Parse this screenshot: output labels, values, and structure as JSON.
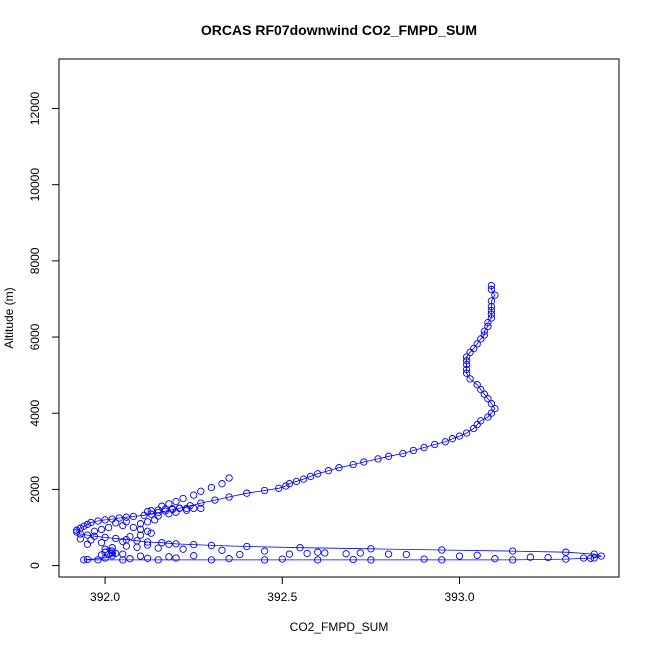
{
  "chart_data": {
    "type": "scatter",
    "title": "ORCAS RF07downwind CO2_FMPD_SUM",
    "xlabel": "CO2_FMPD_SUM",
    "ylabel": "Altitude (m)",
    "xlim": [
      391.87,
      393.45
    ],
    "ylim": [
      -300,
      13300
    ],
    "xticks": [
      392.0,
      392.5,
      393.0
    ],
    "xtick_labels": [
      "392.0",
      "392.5",
      "393.0"
    ],
    "yticks": [
      0,
      2000,
      4000,
      6000,
      8000,
      10000,
      12000
    ],
    "ytick_labels": [
      "0",
      "2000",
      "4000",
      "6000",
      "8000",
      "10000",
      "12000"
    ],
    "grid": false,
    "legend": "none",
    "colors": {
      "series": "#0000ff",
      "axis": "#000000"
    },
    "series": [
      {
        "marker": "open-circle",
        "line": "thin",
        "points": [
          [
            393.09,
            7350
          ],
          [
            393.09,
            7250
          ],
          [
            393.1,
            7100
          ],
          [
            393.09,
            6950
          ],
          [
            393.09,
            6800
          ],
          [
            393.09,
            6700
          ],
          [
            393.09,
            6600
          ],
          [
            393.09,
            6500
          ],
          [
            393.08,
            6380
          ],
          [
            393.08,
            6280
          ],
          [
            393.07,
            6150
          ],
          [
            393.07,
            6050
          ],
          [
            393.06,
            5950
          ],
          [
            393.05,
            5820
          ],
          [
            393.04,
            5700
          ],
          [
            393.03,
            5600
          ],
          [
            393.02,
            5480
          ],
          [
            393.02,
            5380
          ],
          [
            393.02,
            5280
          ],
          [
            393.02,
            5150
          ],
          [
            393.02,
            5050
          ],
          [
            393.03,
            4900
          ],
          [
            393.05,
            4750
          ],
          [
            393.06,
            4620
          ],
          [
            393.07,
            4500
          ],
          [
            393.08,
            4380
          ],
          [
            393.09,
            4250
          ],
          [
            393.1,
            4120
          ],
          [
            393.09,
            4000
          ],
          [
            393.08,
            3900
          ],
          [
            393.06,
            3800
          ],
          [
            393.05,
            3700
          ],
          [
            393.04,
            3600
          ],
          [
            393.02,
            3480
          ],
          [
            393.0,
            3400
          ],
          [
            392.98,
            3330
          ],
          [
            392.96,
            3250
          ],
          [
            392.93,
            3180
          ],
          [
            392.9,
            3100
          ],
          [
            392.87,
            3020
          ],
          [
            392.84,
            2940
          ],
          [
            392.8,
            2870
          ],
          [
            392.77,
            2800
          ],
          [
            392.73,
            2720
          ],
          [
            392.7,
            2650
          ],
          [
            392.66,
            2570
          ],
          [
            392.63,
            2490
          ],
          [
            392.6,
            2410
          ],
          [
            392.58,
            2340
          ],
          [
            392.56,
            2270
          ],
          [
            392.54,
            2210
          ],
          [
            392.52,
            2150
          ],
          [
            392.51,
            2090
          ],
          [
            392.49,
            2030
          ],
          [
            392.45,
            1970
          ],
          [
            392.4,
            1900
          ],
          [
            392.35,
            1800
          ],
          [
            392.31,
            1720
          ],
          [
            392.27,
            1640
          ],
          [
            392.24,
            1570
          ],
          [
            392.21,
            1510
          ],
          [
            392.19,
            1470
          ],
          [
            392.17,
            1430
          ],
          [
            392.15,
            1390
          ],
          [
            392.13,
            1350
          ],
          [
            392.11,
            1320
          ],
          [
            392.08,
            1290
          ],
          [
            392.06,
            1270
          ],
          [
            392.04,
            1250
          ],
          [
            392.02,
            1220
          ],
          [
            392.0,
            1200
          ],
          [
            391.98,
            1170
          ],
          [
            391.96,
            1130
          ],
          [
            391.95,
            1080
          ],
          [
            391.94,
            1030
          ],
          [
            391.93,
            980
          ],
          [
            391.92,
            930
          ],
          [
            391.92,
            880
          ],
          [
            391.93,
            830
          ],
          [
            391.95,
            800
          ],
          [
            391.97,
            770
          ],
          [
            392.0,
            740
          ],
          [
            392.03,
            710
          ],
          [
            392.06,
            680
          ],
          [
            392.09,
            650
          ],
          [
            392.12,
            620
          ],
          [
            392.16,
            600
          ],
          [
            392.2,
            570
          ],
          [
            392.25,
            550
          ],
          [
            392.3,
            530
          ],
          [
            392.4,
            500
          ],
          [
            392.55,
            470
          ],
          [
            392.75,
            440
          ],
          [
            392.95,
            410
          ],
          [
            393.15,
            380
          ],
          [
            393.3,
            350
          ],
          [
            393.38,
            300
          ],
          [
            393.4,
            250
          ],
          [
            393.38,
            200
          ],
          [
            393.3,
            170
          ],
          [
            393.15,
            150
          ],
          [
            392.95,
            150
          ],
          [
            392.75,
            150
          ],
          [
            392.6,
            150
          ],
          [
            392.45,
            150
          ],
          [
            392.3,
            150
          ],
          [
            392.15,
            150
          ],
          [
            392.05,
            150
          ],
          [
            391.98,
            150
          ],
          [
            391.94,
            150
          ],
          [
            391.95,
            160
          ],
          [
            392.0,
            200
          ],
          [
            392.02,
            260
          ],
          [
            392.03,
            320
          ],
          [
            392.02,
            380
          ],
          [
            392.0,
            430
          ],
          [
            392.02,
            470
          ],
          [
            392.06,
            510
          ],
          [
            392.12,
            540
          ],
          [
            392.18,
            560
          ],
          [
            392.27,
            1500
          ],
          [
            392.25,
            1500
          ],
          [
            392.23,
            1500
          ],
          [
            392.21,
            1500
          ],
          [
            392.19,
            1490
          ],
          [
            392.17,
            1480
          ],
          [
            392.15,
            1460
          ],
          [
            392.13,
            1440
          ],
          [
            392.12,
            1420
          ],
          [
            392.16,
            1560
          ],
          [
            392.18,
            1620
          ],
          [
            392.2,
            1680
          ],
          [
            392.22,
            1760
          ],
          [
            392.25,
            1850
          ],
          [
            392.27,
            1950
          ],
          [
            392.3,
            2050
          ],
          [
            392.33,
            2150
          ],
          [
            392.35,
            2300
          ],
          [
            392.05,
            1050
          ],
          [
            392.08,
            1000
          ],
          [
            392.1,
            950
          ],
          [
            392.12,
            900
          ],
          [
            392.13,
            850
          ],
          [
            392.1,
            800
          ],
          [
            392.07,
            760
          ],
          [
            392.03,
            1120
          ],
          [
            392.06,
            1150
          ],
          [
            391.97,
            900
          ],
          [
            391.99,
            950
          ],
          [
            392.01,
            1000
          ],
          [
            392.14,
            1200
          ],
          [
            392.12,
            1150
          ],
          [
            392.1,
            1100
          ],
          [
            392.15,
            1300
          ],
          [
            392.18,
            1360
          ],
          [
            392.2,
            1400
          ],
          [
            392.23,
            1450
          ],
          [
            392.09,
            480
          ],
          [
            392.15,
            460
          ],
          [
            392.22,
            430
          ],
          [
            392.33,
            400
          ],
          [
            392.45,
            380
          ],
          [
            392.6,
            350
          ],
          [
            392.8,
            300
          ],
          [
            393.0,
            250
          ],
          [
            393.2,
            220
          ],
          [
            393.35,
            200
          ],
          [
            393.1,
            180
          ],
          [
            392.9,
            170
          ],
          [
            392.7,
            160
          ],
          [
            392.5,
            170
          ],
          [
            392.35,
            180
          ],
          [
            392.2,
            200
          ],
          [
            392.1,
            250
          ],
          [
            392.05,
            300
          ],
          [
            392.0,
            350
          ],
          [
            392.07,
            180
          ],
          [
            392.12,
            190
          ],
          [
            392.18,
            230
          ],
          [
            392.25,
            260
          ],
          [
            392.38,
            290
          ],
          [
            392.52,
            300
          ],
          [
            392.68,
            310
          ],
          [
            392.85,
            290
          ],
          [
            393.05,
            270
          ],
          [
            393.25,
            210
          ],
          [
            393.37,
            190
          ],
          [
            392.62,
            330
          ],
          [
            392.72,
            330
          ],
          [
            392.57,
            320
          ],
          [
            391.99,
            280
          ],
          [
            392.01,
            290
          ],
          [
            392.02,
            330
          ],
          [
            391.95,
            560
          ],
          [
            391.99,
            600
          ],
          [
            392.05,
            630
          ],
          [
            391.93,
            700
          ],
          [
            391.96,
            670
          ]
        ]
      }
    ]
  }
}
